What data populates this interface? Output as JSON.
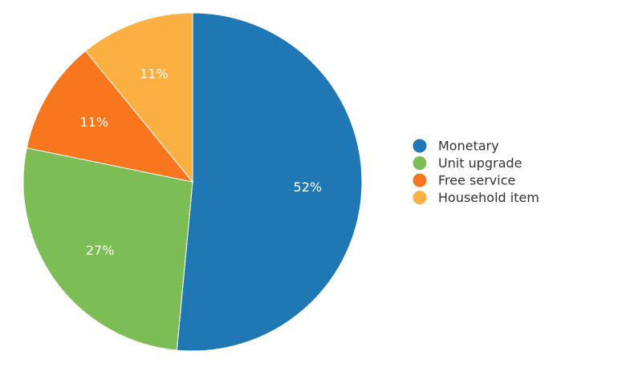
{
  "chart_data": {
    "type": "pie",
    "labels": [
      "Monetary",
      "Unit upgrade",
      "Free service",
      "Household item"
    ],
    "values": [
      52,
      27,
      11,
      11
    ],
    "value_labels": [
      "52%",
      "27%",
      "11%",
      "11%"
    ],
    "colors": [
      "#1f77b4",
      "#7cbd56",
      "#f8761e",
      "#fbb041"
    ],
    "start_angle": "12 o'clock",
    "direction": "clockwise",
    "legend_position": "right"
  }
}
